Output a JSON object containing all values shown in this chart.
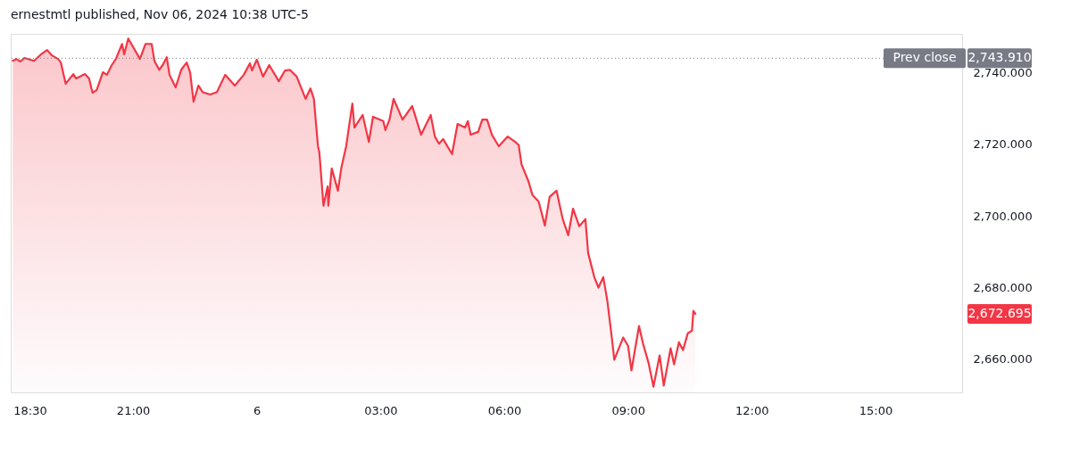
{
  "chart_data": {
    "type": "area",
    "title": "ernestmtl published, Nov 06, 2024 10:38 UTC-5",
    "xlim": [
      "2024-11-05T18:02",
      "2024-11-06T17:06"
    ],
    "xticks": [
      {
        "value": "2024-11-05T18:30",
        "label": "18:30"
      },
      {
        "value": "2024-11-05T21:00",
        "label": "21:00"
      },
      {
        "value": "2024-11-06T00:00",
        "label": "6"
      },
      {
        "value": "2024-11-06T03:00",
        "label": "03:00"
      },
      {
        "value": "2024-11-06T06:00",
        "label": "06:00"
      },
      {
        "value": "2024-11-06T09:00",
        "label": "09:00"
      },
      {
        "value": "2024-11-06T12:00",
        "label": "12:00"
      },
      {
        "value": "2024-11-06T15:00",
        "label": "15:00"
      }
    ],
    "ylim": [
      2650.8,
      2750.7
    ],
    "yticks": [
      {
        "value": 2660,
        "label": "2,660.000"
      },
      {
        "value": 2680,
        "label": "2,680.000"
      },
      {
        "value": 2700,
        "label": "2,700.000"
      },
      {
        "value": 2720,
        "label": "2,720.000"
      },
      {
        "value": 2740,
        "label": "2,740.000"
      }
    ],
    "grid": false,
    "series": [
      {
        "color": "#f23645",
        "x": [
          "2024-11-05T18:05",
          "2024-11-05T18:10",
          "2024-11-05T18:16",
          "2024-11-05T18:22",
          "2024-11-05T18:36",
          "2024-11-05T18:46",
          "2024-11-05T18:55",
          "2024-11-05T19:02",
          "2024-11-05T19:11",
          "2024-11-05T19:15",
          "2024-11-05T19:22",
          "2024-11-05T19:33",
          "2024-11-05T19:37",
          "2024-11-05T19:50",
          "2024-11-05T19:56",
          "2024-11-05T20:01",
          "2024-11-05T20:07",
          "2024-11-05T20:16",
          "2024-11-05T20:22",
          "2024-11-05T20:29",
          "2024-11-05T20:35",
          "2024-11-05T20:44",
          "2024-11-05T20:47",
          "2024-11-05T20:53",
          "2024-11-05T20:59",
          "2024-11-05T21:10",
          "2024-11-05T21:18",
          "2024-11-05T21:27",
          "2024-11-05T21:31",
          "2024-11-05T21:38",
          "2024-11-05T21:43",
          "2024-11-05T21:49",
          "2024-11-05T21:53",
          "2024-11-05T22:02",
          "2024-11-05T22:10",
          "2024-11-05T22:18",
          "2024-11-05T22:23",
          "2024-11-05T22:28",
          "2024-11-05T22:35",
          "2024-11-05T22:41",
          "2024-11-05T22:52",
          "2024-11-05T23:02",
          "2024-11-05T23:14",
          "2024-11-05T23:28",
          "2024-11-05T23:41",
          "2024-11-05T23:50",
          "2024-11-05T23:53",
          "2024-11-06T00:00",
          "2024-11-06T00:09",
          "2024-11-06T00:18",
          "2024-11-06T00:32",
          "2024-11-06T00:41",
          "2024-11-06T00:48",
          "2024-11-06T00:58",
          "2024-11-06T01:11",
          "2024-11-06T01:18",
          "2024-11-06T01:23",
          "2024-11-06T01:29",
          "2024-11-06T01:31",
          "2024-11-06T01:37",
          "2024-11-06T01:43",
          "2024-11-06T01:44",
          "2024-11-06T01:49",
          "2024-11-06T01:58",
          "2024-11-06T02:03",
          "2024-11-06T02:10",
          "2024-11-06T02:19",
          "2024-11-06T02:22",
          "2024-11-06T02:34",
          "2024-11-06T02:43",
          "2024-11-06T02:49",
          "2024-11-06T03:04",
          "2024-11-06T03:07",
          "2024-11-06T03:13",
          "2024-11-06T03:19",
          "2024-11-06T03:32",
          "2024-11-06T03:46",
          "2024-11-06T03:59",
          "2024-11-06T04:13",
          "2024-11-06T04:19",
          "2024-11-06T04:25",
          "2024-11-06T04:31",
          "2024-11-06T04:44",
          "2024-11-06T04:52",
          "2024-11-06T05:03",
          "2024-11-06T05:07",
          "2024-11-06T05:11",
          "2024-11-06T05:22",
          "2024-11-06T05:28",
          "2024-11-06T05:35",
          "2024-11-06T05:42",
          "2024-11-06T05:52",
          "2024-11-06T06:05",
          "2024-11-06T06:16",
          "2024-11-06T06:21",
          "2024-11-06T06:25",
          "2024-11-06T06:35",
          "2024-11-06T06:41",
          "2024-11-06T06:50",
          "2024-11-06T06:59",
          "2024-11-06T07:06",
          "2024-11-06T07:16",
          "2024-11-06T07:25",
          "2024-11-06T07:33",
          "2024-11-06T07:40",
          "2024-11-06T07:49",
          "2024-11-06T07:58",
          "2024-11-06T08:02",
          "2024-11-06T08:11",
          "2024-11-06T08:17",
          "2024-11-06T08:24",
          "2024-11-06T08:30",
          "2024-11-06T08:37",
          "2024-11-06T08:40",
          "2024-11-06T08:53",
          "2024-11-06T09:00",
          "2024-11-06T09:05",
          "2024-11-06T09:16",
          "2024-11-06T09:22",
          "2024-11-06T09:30",
          "2024-11-06T09:37",
          "2024-11-06T09:46",
          "2024-11-06T09:52",
          "2024-11-06T10:02",
          "2024-11-06T10:07",
          "2024-11-06T10:14",
          "2024-11-06T10:20",
          "2024-11-06T10:27",
          "2024-11-06T10:33",
          "2024-11-06T10:35",
          "2024-11-06T10:38"
        ],
        "values": [
          2743.2,
          2743.7,
          2743.0,
          2744.0,
          2743.2,
          2745.0,
          2746.2,
          2744.7,
          2743.7,
          2742.7,
          2736.8,
          2739.5,
          2738.3,
          2739.5,
          2738.3,
          2734.3,
          2735.0,
          2740.0,
          2739.3,
          2742.0,
          2743.7,
          2747.9,
          2745.0,
          2749.4,
          2747.4,
          2743.7,
          2747.9,
          2747.9,
          2743.2,
          2740.7,
          2742.0,
          2744.2,
          2739.3,
          2735.8,
          2740.7,
          2742.7,
          2740.0,
          2731.8,
          2736.3,
          2734.5,
          2733.8,
          2734.5,
          2739.3,
          2736.3,
          2739.3,
          2742.5,
          2740.5,
          2743.5,
          2738.8,
          2742.0,
          2737.5,
          2740.5,
          2740.7,
          2738.8,
          2732.6,
          2735.5,
          2732.6,
          2719.4,
          2717.7,
          2702.8,
          2708.2,
          2702.8,
          2713.2,
          2707.0,
          2713.4,
          2719.4,
          2731.3,
          2724.6,
          2728.1,
          2720.6,
          2727.6,
          2726.4,
          2723.9,
          2726.8,
          2732.6,
          2726.8,
          2730.6,
          2722.6,
          2728.1,
          2722.1,
          2720.1,
          2721.4,
          2717.2,
          2725.6,
          2724.6,
          2726.4,
          2722.6,
          2723.4,
          2726.8,
          2726.8,
          2722.6,
          2719.4,
          2722.1,
          2720.6,
          2719.7,
          2714.4,
          2709.7,
          2705.8,
          2704.0,
          2697.3,
          2705.3,
          2707.0,
          2699.1,
          2694.6,
          2702.0,
          2697.1,
          2699.1,
          2689.6,
          2682.9,
          2680.0,
          2682.9,
          2676.2,
          2665.1,
          2659.9,
          2666.1,
          2663.8,
          2656.9,
          2669.3,
          2664.3,
          2658.9,
          2652.4,
          2661.1,
          2652.7,
          2663.1,
          2658.6,
          2664.8,
          2662.6,
          2667.3,
          2668.0,
          2673.5,
          2672.695
        ]
      }
    ],
    "ref_lines": [
      {
        "axis": "y",
        "value": 2743.91,
        "label": "Prev close",
        "color": "#787b86",
        "line_style": "dotted"
      }
    ],
    "annotations": [
      "2,743.910",
      "2,672.695"
    ]
  }
}
